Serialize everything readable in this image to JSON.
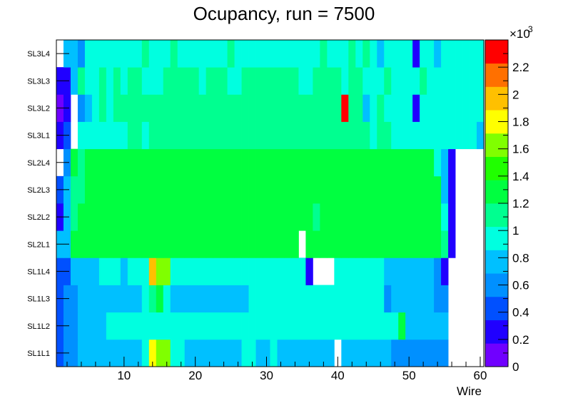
{
  "chart_data": {
    "type": "heatmap",
    "title": "Ocupancy, run = 7500",
    "xlabel": "Wire",
    "ylabel": "",
    "xlim": [
      0.5,
      60.5
    ],
    "x_ticks": [
      10,
      20,
      30,
      40,
      50,
      60
    ],
    "y_categories": [
      "SL1L1",
      "SL1L2",
      "SL1L3",
      "SL1L4",
      "SL2L1",
      "SL2L2",
      "SL2L3",
      "SL2L4",
      "SL3L1",
      "SL3L2",
      "SL3L3",
      "SL3L4"
    ],
    "z_range": [
      0,
      2400
    ],
    "z_multiplier_label": "×10",
    "z_multiplier_exponent": "3",
    "z_ticks": [
      {
        "value": 0,
        "label": "0"
      },
      {
        "value": 200,
        "label": "0.2"
      },
      {
        "value": 400,
        "label": "0.4"
      },
      {
        "value": 600,
        "label": "0.6"
      },
      {
        "value": 800,
        "label": "0.8"
      },
      {
        "value": 1000,
        "label": "1"
      },
      {
        "value": 1200,
        "label": "1.2"
      },
      {
        "value": 1400,
        "label": "1.4"
      },
      {
        "value": 1600,
        "label": "1.6"
      },
      {
        "value": 1800,
        "label": "1.8"
      },
      {
        "value": 2000,
        "label": "2"
      },
      {
        "value": 2200,
        "label": "2.2"
      }
    ],
    "palette": [
      "#7000ff",
      "#2000ff",
      "#0050ff",
      "#0090ff",
      "#00c0ff",
      "#00ffe0",
      "#00ff90",
      "#00ff40",
      "#20ff00",
      "#80ff00",
      "#ffff00",
      "#ffc000",
      "#ff7000",
      "#ff0000"
    ],
    "z_values": [
      [
        450,
        520,
        600,
        720,
        700,
        800,
        840,
        850,
        850,
        850,
        850,
        850,
        900,
        1800,
        1650,
        1700,
        900,
        900,
        850,
        850,
        850,
        850,
        850,
        850,
        850,
        850,
        900,
        900,
        850,
        850,
        900,
        850,
        850,
        850,
        850,
        850,
        850,
        850,
        850,
        0,
        750,
        800,
        800,
        800,
        800,
        750,
        700,
        680,
        650,
        640,
        600,
        600,
        600,
        600,
        600,
        0,
        0,
        0,
        0,
        0
      ],
      [
        450,
        520,
        600,
        720,
        700,
        800,
        840,
        900,
        900,
        900,
        900,
        950,
        900,
        950,
        900,
        950,
        900,
        900,
        900,
        900,
        900,
        900,
        900,
        900,
        900,
        900,
        900,
        950,
        950,
        950,
        950,
        950,
        950,
        950,
        950,
        950,
        950,
        950,
        950,
        950,
        950,
        950,
        950,
        950,
        950,
        950,
        950,
        950,
        1200,
        850,
        800,
        800,
        800,
        800,
        800,
        0,
        0,
        0,
        0,
        0
      ],
      [
        460,
        520,
        600,
        720,
        700,
        750,
        800,
        850,
        850,
        850,
        850,
        850,
        900,
        1100,
        1300,
        900,
        850,
        850,
        850,
        850,
        850,
        850,
        850,
        850,
        850,
        850,
        850,
        900,
        900,
        900,
        900,
        900,
        900,
        900,
        900,
        900,
        900,
        900,
        900,
        900,
        900,
        900,
        900,
        900,
        900,
        900,
        650,
        700,
        700,
        700,
        750,
        750,
        750,
        650,
        600,
        0,
        0,
        0,
        0,
        0
      ],
      [
        450,
        400,
        700,
        750,
        800,
        850,
        900,
        900,
        900,
        850,
        900,
        900,
        900,
        1900,
        1700,
        1700,
        900,
        900,
        900,
        900,
        900,
        900,
        900,
        900,
        900,
        900,
        900,
        900,
        900,
        900,
        900,
        900,
        900,
        900,
        900,
        300,
        0,
        0,
        0,
        900,
        900,
        900,
        900,
        900,
        900,
        900,
        800,
        750,
        750,
        750,
        750,
        750,
        700,
        650,
        300,
        0,
        0,
        0,
        0,
        0
      ],
      [
        700,
        700,
        1200,
        1250,
        1300,
        1250,
        1200,
        1250,
        1250,
        1300,
        1250,
        1300,
        1300,
        1300,
        1300,
        1300,
        1300,
        1300,
        1300,
        1300,
        1300,
        1300,
        1300,
        1300,
        1300,
        1300,
        1350,
        1350,
        1300,
        1300,
        1350,
        1350,
        1300,
        1300,
        0,
        1300,
        1300,
        1300,
        1300,
        1300,
        1300,
        1300,
        1300,
        1300,
        1300,
        1300,
        1300,
        1300,
        1300,
        1300,
        1300,
        1300,
        1250,
        1250,
        1100,
        300,
        0,
        0,
        0,
        0
      ],
      [
        300,
        750,
        1150,
        1200,
        1250,
        1300,
        1200,
        1250,
        1250,
        1300,
        1250,
        1300,
        1300,
        1300,
        1300,
        1300,
        1300,
        1300,
        1300,
        1300,
        1300,
        1300,
        1300,
        1300,
        1300,
        1300,
        1300,
        1300,
        1300,
        1300,
        1300,
        1300,
        1300,
        1300,
        1300,
        1300,
        1150,
        1300,
        1300,
        1300,
        1300,
        1300,
        1300,
        1300,
        1300,
        1250,
        1250,
        1250,
        1300,
        1300,
        1250,
        1250,
        1250,
        1200,
        1000,
        300,
        0,
        0,
        0,
        0
      ],
      [
        400,
        750,
        1150,
        1150,
        1250,
        1250,
        1200,
        1250,
        1250,
        1250,
        1200,
        1250,
        1250,
        1250,
        1300,
        1250,
        1250,
        1300,
        1300,
        1250,
        1300,
        1300,
        1300,
        1300,
        1300,
        1300,
        1300,
        1300,
        1300,
        1300,
        1300,
        1300,
        1300,
        1300,
        1300,
        1300,
        1300,
        1300,
        1300,
        1300,
        1300,
        1300,
        1300,
        1300,
        1300,
        1300,
        1300,
        1300,
        1300,
        1250,
        1250,
        1250,
        1250,
        1200,
        700,
        300,
        0,
        0,
        0,
        0
      ],
      [
        0,
        600,
        1200,
        1150,
        1250,
        1200,
        1250,
        1250,
        1250,
        1250,
        1300,
        1300,
        1300,
        1300,
        1300,
        1300,
        1300,
        1300,
        1300,
        1300,
        1300,
        1300,
        1300,
        1300,
        1300,
        1300,
        1300,
        1300,
        1300,
        1300,
        1300,
        1300,
        1300,
        1300,
        1300,
        1300,
        1300,
        1300,
        1300,
        1300,
        1300,
        1300,
        1300,
        1300,
        1300,
        1300,
        1300,
        1300,
        1300,
        1300,
        1300,
        1300,
        1300,
        1000,
        800,
        300,
        0,
        0,
        0,
        0
      ],
      [
        300,
        450,
        0,
        900,
        950,
        950,
        1000,
        1000,
        1000,
        1000,
        1050,
        1050,
        1000,
        1050,
        1050,
        1050,
        1100,
        1050,
        1150,
        1050,
        1050,
        1050,
        1050,
        1050,
        1050,
        1100,
        1050,
        1050,
        1050,
        1050,
        1100,
        1050,
        1050,
        1050,
        1050,
        1050,
        1050,
        1050,
        1100,
        1050,
        1100,
        1050,
        1050,
        1050,
        1000,
        1050,
        1050,
        1000,
        1000,
        1000,
        1000,
        1000,
        1000,
        1000,
        1000,
        1000,
        1000,
        1000,
        950,
        800
      ],
      [
        100,
        250,
        0,
        600,
        750,
        1000,
        1100,
        1000,
        1050,
        1050,
        1050,
        1050,
        1100,
        1050,
        1050,
        1050,
        1050,
        1100,
        1050,
        1050,
        1050,
        1050,
        1050,
        1050,
        1050,
        1050,
        1100,
        1050,
        1050,
        1050,
        1050,
        1050,
        1050,
        1050,
        1050,
        1050,
        1050,
        1050,
        1100,
        1050,
        2300,
        1050,
        1050,
        850,
        900,
        1100,
        1000,
        1000,
        1000,
        1000,
        200,
        1000,
        1000,
        950,
        1000,
        1000,
        1000,
        950,
        950,
        950
      ],
      [
        300,
        300,
        800,
        1100,
        900,
        1000,
        1050,
        950,
        1050,
        950,
        1050,
        1050,
        950,
        1000,
        1000,
        1050,
        1050,
        1050,
        1050,
        1050,
        1000,
        1050,
        1050,
        1050,
        1000,
        1000,
        1050,
        1100,
        1050,
        1050,
        1050,
        1050,
        1050,
        1050,
        1000,
        1000,
        1050,
        1050,
        1050,
        1050,
        1000,
        1050,
        1050,
        900,
        1000,
        1000,
        1050,
        1000,
        1000,
        1000,
        1000,
        1050,
        1000,
        950,
        1000,
        1000,
        1000,
        950,
        950,
        950
      ],
      [
        0,
        800,
        700,
        600,
        1000,
        1000,
        1000,
        1000,
        1000,
        1000,
        1000,
        1000,
        1050,
        1000,
        1000,
        1000,
        1100,
        1000,
        1000,
        1000,
        1000,
        1000,
        1000,
        1000,
        1050,
        1000,
        1000,
        1000,
        1000,
        1000,
        1000,
        1000,
        1000,
        1000,
        1000,
        1000,
        1000,
        1100,
        1000,
        1000,
        1000,
        1100,
        1000,
        1050,
        950,
        850,
        1000,
        1000,
        1000,
        1000,
        200,
        1000,
        900,
        850,
        950,
        1000,
        1000,
        1000,
        1000,
        950
      ]
    ]
  }
}
